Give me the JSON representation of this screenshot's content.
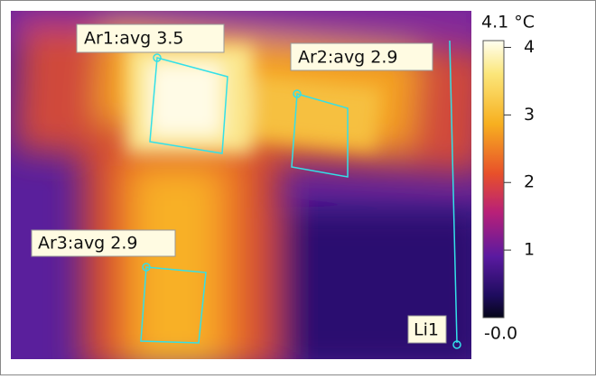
{
  "areas": [
    {
      "label": "Ar1:avg 3.5"
    },
    {
      "label": "Ar2:avg 2.9"
    },
    {
      "label": "Ar3:avg 2.9"
    }
  ],
  "line": {
    "label": "Li1"
  },
  "colorbar": {
    "max": {
      "value": 4.1,
      "label": "4.1 °C"
    },
    "min": {
      "value": -0.0,
      "label": "-0.0"
    },
    "ticks": [
      1,
      2,
      3,
      4
    ]
  }
}
